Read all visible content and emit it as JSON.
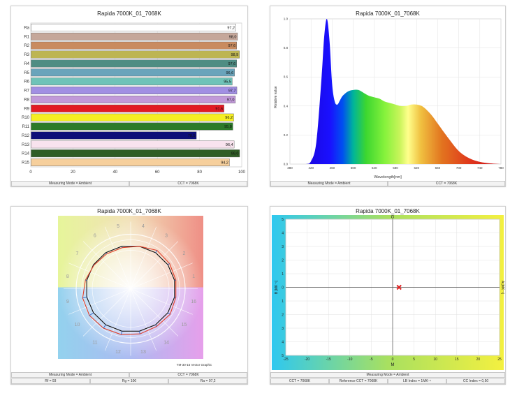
{
  "cri_chart": {
    "title": "Rapida 7000K_01_7068K",
    "categories": [
      "Ra",
      "R1",
      "R2",
      "R3",
      "R4",
      "R5",
      "R6",
      "R7",
      "R8",
      "R9",
      "R10",
      "R11",
      "R12",
      "R13",
      "R14",
      "R15"
    ],
    "values": [
      97.2,
      98.0,
      97.6,
      98.9,
      97.6,
      96.6,
      95.5,
      97.7,
      97.0,
      91.6,
      96.2,
      95.8,
      78.5,
      96.4,
      99.0,
      94.2
    ],
    "value_labels": [
      "97,2",
      "98,0",
      "97,6",
      "98,9",
      "97,6",
      "96,6",
      "95,5",
      "97,7",
      "97,0",
      "91,6",
      "96,2",
      "95,8",
      "78,5",
      "96,4",
      "99,0",
      "94,2"
    ],
    "colors": [
      "#ffffff",
      "#c5a79a",
      "#c98b5f",
      "#bdb552",
      "#4f8d83",
      "#6aa4bb",
      "#6fc3b8",
      "#a18fe3",
      "#c199d8",
      "#e21a22",
      "#f5ee22",
      "#2d7a2a",
      "#0d0f78",
      "#f8e3ee",
      "#2f5d26",
      "#f6cf9c"
    ],
    "xlim": [
      0,
      100
    ],
    "xticks": [
      0,
      20,
      40,
      60,
      80,
      100
    ],
    "status": [
      "Measuring Mode = Ambient",
      "CCT = 7068K"
    ]
  },
  "spectrum_chart": {
    "title": "Rapida 7000K_01_7068K",
    "xlabel": "Wavelength[nm]",
    "ylabel": "Relative value",
    "xlim": [
      380,
      780
    ],
    "ylim": [
      0,
      1.0
    ],
    "xticks": [
      380,
      420,
      460,
      500,
      540,
      580,
      620,
      660,
      700,
      740,
      780
    ],
    "yticks": [
      0.0,
      0.2,
      0.4,
      0.6,
      0.8,
      1.0
    ],
    "ytick_labels": [
      "0.0",
      "0.2",
      "0.4",
      "0.6",
      "0.8",
      "1.0"
    ],
    "x": [
      380,
      410,
      420,
      430,
      440,
      445,
      450,
      455,
      460,
      465,
      470,
      475,
      480,
      490,
      500,
      510,
      520,
      530,
      540,
      550,
      560,
      570,
      580,
      590,
      600,
      610,
      620,
      630,
      640,
      650,
      660,
      680,
      700,
      720,
      740,
      760,
      780
    ],
    "y": [
      0.0,
      0.0,
      0.02,
      0.15,
      0.6,
      0.88,
      1.0,
      0.85,
      0.55,
      0.43,
      0.41,
      0.44,
      0.47,
      0.5,
      0.51,
      0.51,
      0.49,
      0.47,
      0.46,
      0.45,
      0.43,
      0.42,
      0.41,
      0.4,
      0.4,
      0.41,
      0.41,
      0.4,
      0.37,
      0.33,
      0.28,
      0.18,
      0.09,
      0.04,
      0.015,
      0.005,
      0.0
    ],
    "status": [
      "Measuring Mode = Ambient",
      "CCT = 7068K"
    ]
  },
  "vector_chart": {
    "title": "Rapida 7000K_01_7068K",
    "hue_labels": [
      "1",
      "2",
      "3",
      "4",
      "5",
      "6",
      "7",
      "8",
      "9",
      "10",
      "11",
      "12",
      "13",
      "14",
      "15",
      "16"
    ],
    "note": "TM-30-15 Vector Graphic",
    "status_top": [
      "Measuring Mode = Ambient",
      "CCT = 7068K"
    ],
    "status_bottom": [
      "Rf = 93",
      "Rg = 100",
      "Ra = 97,2"
    ]
  },
  "duv_chart": {
    "title": "Rapida 7000K_01_7068K",
    "top_label": "G",
    "bottom_label": "M",
    "left_label": "B [MK⁻¹]",
    "right_label": "A [MK⁻¹]",
    "xlim": [
      -25,
      25
    ],
    "ylim": [
      -5,
      5
    ],
    "xticks": [
      -25,
      -20,
      -15,
      -10,
      -5,
      0,
      5,
      10,
      15,
      20,
      25
    ],
    "yticks": [
      5,
      4,
      3,
      2,
      1,
      0,
      1,
      2,
      3,
      4,
      5
    ],
    "point": {
      "x": 1.5,
      "y": 0
    },
    "status_top": [
      "Measuring Mode = Ambient"
    ],
    "status_bottom": [
      "CCT = 7068K",
      "Reference CCT = 7068K",
      "LB Index = 1MK⁻¹",
      "CC Index = 0,50"
    ]
  }
}
